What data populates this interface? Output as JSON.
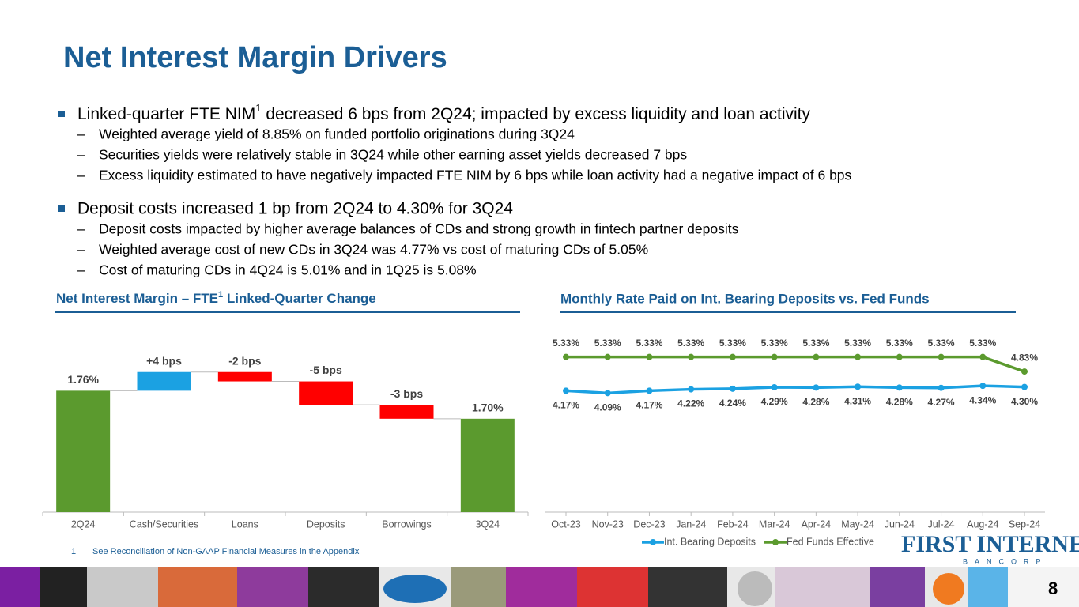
{
  "title": "Net Interest Margin Drivers",
  "bullets": [
    {
      "text": "Linked-quarter FTE NIM",
      "sup": "1",
      "rest": " decreased 6 bps from 2Q24; impacted by excess liquidity and loan activity",
      "subs": [
        "Weighted average yield of 8.85% on funded portfolio originations during 3Q24",
        "Securities yields were relatively stable in 3Q24 while other earning asset yields decreased 7 bps",
        "Excess liquidity estimated to have negatively impacted FTE NIM by 6 bps while loan activity had a negative impact of 6 bps"
      ]
    },
    {
      "text": "Deposit costs increased 1 bp from 2Q24 to 4.30% for 3Q24",
      "subs": [
        "Deposit costs impacted by higher average balances of CDs and strong growth in fintech partner deposits",
        "Weighted average cost of new CDs in 3Q24 was 4.77% vs cost of maturing CDs of 5.05%",
        "Cost of maturing CDs in 4Q24 is 5.01% and in 1Q25 is 5.08%"
      ]
    }
  ],
  "chart_data": [
    {
      "type": "waterfall",
      "title": {
        "text": "Net Interest Margin – FTE",
        "sup": "1",
        "rest": " Linked-Quarter Change"
      },
      "categories": [
        "2Q24",
        "Cash/Securities",
        "Loans",
        "Deposits",
        "Borrowings",
        "3Q24"
      ],
      "values": [
        1.76,
        0.04,
        -0.02,
        -0.05,
        -0.03,
        1.7
      ],
      "value_labels": [
        "1.76%",
        "+4 bps",
        "-2 bps",
        "-5 bps",
        "-3 bps",
        "1.70%"
      ],
      "measures": [
        "total",
        "relative",
        "relative",
        "relative",
        "relative",
        "total"
      ],
      "colors": {
        "total": "#5B9A2E",
        "increase": "#1BA1E2",
        "decrease": "#FF0000"
      },
      "ylim": [
        1.5,
        1.83
      ]
    },
    {
      "type": "line",
      "title": "Monthly Rate Paid on Int. Bearing Deposits vs. Fed Funds",
      "categories": [
        "Oct-23",
        "Nov-23",
        "Dec-23",
        "Jan-24",
        "Feb-24",
        "Mar-24",
        "Apr-24",
        "May-24",
        "Jun-24",
        "Jul-24",
        "Aug-24",
        "Sep-24"
      ],
      "series": [
        {
          "name": "Int. Bearing Deposits",
          "color": "#1BA1E2",
          "values": [
            4.17,
            4.09,
            4.17,
            4.22,
            4.24,
            4.29,
            4.28,
            4.31,
            4.28,
            4.27,
            4.34,
            4.3
          ],
          "value_labels": [
            "4.17%",
            "4.09%",
            "4.17%",
            "4.22%",
            "4.24%",
            "4.29%",
            "4.28%",
            "4.31%",
            "4.28%",
            "4.27%",
            "4.34%",
            "4.30%"
          ]
        },
        {
          "name": "Fed Funds Effective",
          "color": "#5B9A2E",
          "values": [
            5.33,
            5.33,
            5.33,
            5.33,
            5.33,
            5.33,
            5.33,
            5.33,
            5.33,
            5.33,
            5.33,
            4.83
          ],
          "value_labels": [
            "5.33%",
            "5.33%",
            "5.33%",
            "5.33%",
            "5.33%",
            "5.33%",
            "5.33%",
            "5.33%",
            "5.33%",
            "5.33%",
            "5.33%",
            "4.83%"
          ]
        }
      ],
      "ylim": [
        0,
        6
      ],
      "legend": "bottom"
    }
  ],
  "footnote": {
    "number": "1",
    "text": "See Reconciliation of Non-GAAP Financial Measures in the Appendix"
  },
  "logo": {
    "name": "FIRST INTERNET",
    "sub": "BANCORP"
  },
  "page_number": 8
}
